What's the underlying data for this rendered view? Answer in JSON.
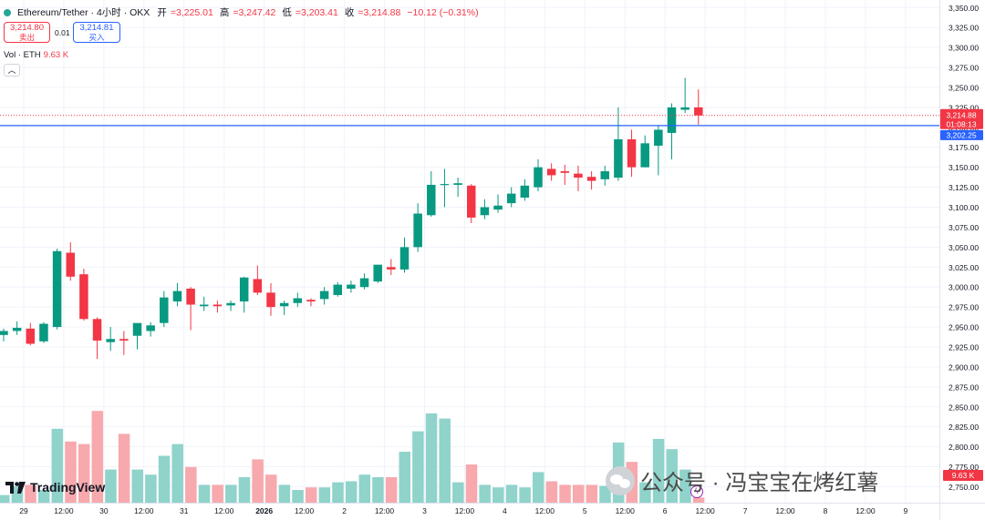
{
  "header": {
    "symbol": "Ethereum/Tether · 4小时 · OKX",
    "open_label": "开",
    "open": "=3,225.01",
    "high_label": "高",
    "high": "=3,247.42",
    "low_label": "低",
    "low": "=3,203.41",
    "close_label": "收",
    "close": "=3,214.88",
    "change": "−10.12 (−0.31%)"
  },
  "quote": {
    "sell_price": "3,214.80",
    "sell_label": "卖出",
    "spread": "0.01",
    "buy_price": "3,214.81",
    "buy_label": "买入"
  },
  "volume": {
    "label": "Vol · ETH",
    "value": "9.63 K"
  },
  "collapse_symbol": "︿",
  "labels": {
    "last_price": "3,214.88",
    "countdown": "01:08:13",
    "hline_price": "3,202.25",
    "volume_tag": "9.63 K"
  },
  "logo_text": "TradingView",
  "watermark": "公众号 · 冯宝宝在烤红薯",
  "colors": {
    "up": "#089981",
    "down": "#f23645",
    "up_vol": "#8fd3cb",
    "down_vol": "#f7a9ad",
    "hline": "#2962ff"
  },
  "chart_data": {
    "type": "candlestick",
    "title": "Ethereum/Tether · 4小时 · OKX",
    "ylim": [
      2730,
      3360
    ],
    "y_ticks": [
      "3,350.00",
      "3,325.00",
      "3,300.00",
      "3,275.00",
      "3,250.00",
      "3,225.00",
      "3,200.00",
      "3,175.00",
      "3,150.00",
      "3,125.00",
      "3,100.00",
      "3,075.00",
      "3,050.00",
      "3,025.00",
      "3,000.00",
      "2,975.00",
      "2,950.00",
      "2,925.00",
      "2,900.00",
      "2,875.00",
      "2,850.00",
      "2,825.00",
      "2,800.00",
      "2,775.00",
      "2,750.00"
    ],
    "x_ticks": [
      {
        "label": "29",
        "i": 1.5
      },
      {
        "label": "12:00",
        "i": 4.5
      },
      {
        "label": "30",
        "i": 7.5
      },
      {
        "label": "12:00",
        "i": 10.5
      },
      {
        "label": "31",
        "i": 13.5
      },
      {
        "label": "12:00",
        "i": 16.5
      },
      {
        "label": "2026",
        "i": 19.5
      },
      {
        "label": "12:00",
        "i": 22.5
      },
      {
        "label": "2",
        "i": 25.5
      },
      {
        "label": "12:00",
        "i": 28.5
      },
      {
        "label": "3",
        "i": 31.5
      },
      {
        "label": "12:00",
        "i": 34.5
      },
      {
        "label": "4",
        "i": 37.5
      },
      {
        "label": "12:00",
        "i": 40.5
      },
      {
        "label": "5",
        "i": 43.5
      },
      {
        "label": "12:00",
        "i": 46.5
      },
      {
        "label": "6",
        "i": 49.5
      },
      {
        "label": "12:00",
        "i": 52.5
      },
      {
        "label": "7",
        "i": 55.5
      },
      {
        "label": "12:00",
        "i": 58.5
      },
      {
        "label": "8",
        "i": 61.5
      },
      {
        "label": "12:00",
        "i": 64.5
      },
      {
        "label": "9",
        "i": 67.5
      }
    ],
    "last_price": 3214.88,
    "horizontal_line": 3202.25,
    "volume_max": 25,
    "candles": [
      {
        "o": 2940,
        "h": 2948,
        "c": 2945,
        "l": 2932,
        "v": 1.5
      },
      {
        "o": 2945,
        "h": 2957,
        "c": 2949,
        "l": 2940,
        "v": 3.2
      },
      {
        "o": 2948,
        "h": 2955,
        "c": 2929,
        "l": 2927,
        "v": 3.5
      },
      {
        "o": 2932,
        "h": 2956,
        "c": 2954,
        "l": 2930,
        "v": 2.5
      },
      {
        "o": 2950,
        "h": 3048,
        "c": 3045,
        "l": 2947,
        "v": 14.5
      },
      {
        "o": 3043,
        "h": 3056,
        "c": 3013,
        "l": 3008,
        "v": 12.0
      },
      {
        "o": 3016,
        "h": 3023,
        "c": 2960,
        "l": 2958,
        "v": 11.5
      },
      {
        "o": 2960,
        "h": 2962,
        "c": 2933,
        "l": 2910,
        "v": 18.0
      },
      {
        "o": 2931,
        "h": 2950,
        "c": 2935,
        "l": 2920,
        "v": 6.5
      },
      {
        "o": 2935,
        "h": 2945,
        "c": 2933,
        "l": 2915,
        "v": 13.5
      },
      {
        "o": 2939,
        "h": 2952,
        "c": 2955,
        "l": 2922,
        "v": 6.5
      },
      {
        "o": 2945,
        "h": 2956,
        "c": 2952,
        "l": 2938,
        "v": 5.5
      },
      {
        "o": 2955,
        "h": 2995,
        "c": 2987,
        "l": 2950,
        "v": 9.2
      },
      {
        "o": 2982,
        "h": 3005,
        "c": 2995,
        "l": 2976,
        "v": 11.5
      },
      {
        "o": 2998,
        "h": 3000,
        "c": 2978,
        "l": 2946,
        "v": 7.0
      },
      {
        "o": 2976,
        "h": 2988,
        "c": 2978,
        "l": 2970,
        "v": 3.5
      },
      {
        "o": 2978,
        "h": 2983,
        "c": 2976,
        "l": 2968,
        "v": 3.5
      },
      {
        "o": 2977,
        "h": 2983,
        "c": 2980,
        "l": 2970,
        "v": 3.5
      },
      {
        "o": 2982,
        "h": 3013,
        "c": 3012,
        "l": 2968,
        "v": 5.0
      },
      {
        "o": 3010,
        "h": 3027,
        "c": 2993,
        "l": 2990,
        "v": 8.5
      },
      {
        "o": 2993,
        "h": 3005,
        "c": 2975,
        "l": 2964,
        "v": 5.5
      },
      {
        "o": 2976,
        "h": 2983,
        "c": 2980,
        "l": 2965,
        "v": 3.5
      },
      {
        "o": 2980,
        "h": 2993,
        "c": 2986,
        "l": 2975,
        "v": 2.5
      },
      {
        "o": 2984,
        "h": 2986,
        "c": 2982,
        "l": 2976,
        "v": 3.0
      },
      {
        "o": 2985,
        "h": 3000,
        "c": 2995,
        "l": 2978,
        "v": 3.0
      },
      {
        "o": 2990,
        "h": 3006,
        "c": 3003,
        "l": 2988,
        "v": 4.0
      },
      {
        "o": 2998,
        "h": 3008,
        "c": 3003,
        "l": 2993,
        "v": 4.2
      },
      {
        "o": 3000,
        "h": 3017,
        "c": 3011,
        "l": 2997,
        "v": 5.5
      },
      {
        "o": 3007,
        "h": 3025,
        "c": 3028,
        "l": 3005,
        "v": 5.0
      },
      {
        "o": 3025,
        "h": 3035,
        "c": 3022,
        "l": 3015,
        "v": 5.0
      },
      {
        "o": 3022,
        "h": 3062,
        "c": 3050,
        "l": 3018,
        "v": 10.0
      },
      {
        "o": 3050,
        "h": 3105,
        "c": 3092,
        "l": 3044,
        "v": 14.0
      },
      {
        "o": 3090,
        "h": 3145,
        "c": 3128,
        "l": 3088,
        "v": 17.5
      },
      {
        "o": 3128,
        "h": 3148,
        "c": 3129,
        "l": 3100,
        "v": 16.5
      },
      {
        "o": 3128,
        "h": 3137,
        "c": 3130,
        "l": 3113,
        "v": 4.0
      },
      {
        "o": 3127,
        "h": 3129,
        "c": 3087,
        "l": 3080,
        "v": 7.5
      },
      {
        "o": 3090,
        "h": 3110,
        "c": 3100,
        "l": 3085,
        "v": 3.5
      },
      {
        "o": 3097,
        "h": 3116,
        "c": 3102,
        "l": 3093,
        "v": 3.0
      },
      {
        "o": 3105,
        "h": 3125,
        "c": 3117,
        "l": 3100,
        "v": 3.5
      },
      {
        "o": 3112,
        "h": 3135,
        "c": 3127,
        "l": 3108,
        "v": 3.0
      },
      {
        "o": 3125,
        "h": 3160,
        "c": 3150,
        "l": 3120,
        "v": 6.0
      },
      {
        "o": 3148,
        "h": 3155,
        "c": 3140,
        "l": 3133,
        "v": 4.2
      },
      {
        "o": 3145,
        "h": 3153,
        "c": 3143,
        "l": 3128,
        "v": 3.5
      },
      {
        "o": 3142,
        "h": 3152,
        "c": 3137,
        "l": 3120,
        "v": 3.5
      },
      {
        "o": 3138,
        "h": 3145,
        "c": 3133,
        "l": 3122,
        "v": 3.5
      },
      {
        "o": 3135,
        "h": 3152,
        "c": 3145,
        "l": 3127,
        "v": 3.3
      },
      {
        "o": 3137,
        "h": 3225,
        "c": 3185,
        "l": 3133,
        "v": 11.8
      },
      {
        "o": 3185,
        "h": 3197,
        "c": 3150,
        "l": 3138,
        "v": 8.0
      },
      {
        "o": 3150,
        "h": 3190,
        "c": 3180,
        "l": 3150,
        "v": 4.0
      },
      {
        "o": 3177,
        "h": 3202,
        "c": 3197,
        "l": 3140,
        "v": 12.5
      },
      {
        "o": 3193,
        "h": 3230,
        "c": 3225,
        "l": 3160,
        "v": 10.5
      },
      {
        "o": 3222,
        "h": 3262,
        "c": 3225,
        "l": 3218,
        "v": 6.5
      },
      {
        "o": 3225,
        "h": 3247.42,
        "c": 3214.88,
        "l": 3203.41,
        "v": 1.0
      }
    ]
  }
}
